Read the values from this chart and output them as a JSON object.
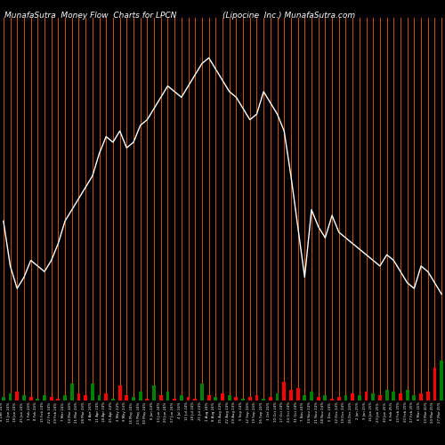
{
  "title_left": "MunafaSutra  Money Flow  Charts for LPCN",
  "title_right": "(Lipocine  Inc.) MunafaSutra.com",
  "background_color": "#000000",
  "orange_line_color": "#CC5500",
  "white_line_color": "#FFFFFF",
  "n_bars": 65,
  "white_line_values": [
    300,
    260,
    240,
    250,
    265,
    260,
    255,
    265,
    280,
    300,
    310,
    320,
    330,
    340,
    360,
    375,
    370,
    380,
    365,
    370,
    385,
    390,
    400,
    410,
    420,
    415,
    410,
    420,
    430,
    440,
    445,
    435,
    425,
    415,
    410,
    400,
    390,
    395,
    415,
    405,
    395,
    380,
    340,
    295,
    250,
    310,
    295,
    285,
    305,
    290,
    285,
    280,
    275,
    270,
    265,
    260,
    270,
    265,
    255,
    245,
    240,
    260,
    255,
    245,
    235
  ],
  "mf_values": [
    2,
    4,
    5,
    3,
    2,
    1,
    3,
    2,
    1,
    3,
    9,
    4,
    3,
    9,
    3,
    4,
    1,
    8,
    3,
    2,
    5,
    1,
    8,
    3,
    5,
    1,
    3,
    2,
    1,
    9,
    3,
    2,
    4,
    3,
    2,
    1,
    2,
    3,
    1,
    2,
    4,
    10,
    6,
    7,
    3,
    5,
    2,
    3,
    1,
    2,
    3,
    4,
    3,
    5,
    4,
    3,
    6,
    5,
    4,
    6,
    3,
    4,
    5,
    18,
    22
  ],
  "mf_colors": [
    "green",
    "green",
    "red",
    "green",
    "red",
    "green",
    "green",
    "red",
    "red",
    "green",
    "green",
    "red",
    "red",
    "green",
    "green",
    "red",
    "green",
    "red",
    "red",
    "green",
    "green",
    "red",
    "green",
    "red",
    "green",
    "red",
    "green",
    "red",
    "red",
    "green",
    "red",
    "green",
    "red",
    "green",
    "red",
    "green",
    "red",
    "red",
    "green",
    "red",
    "green",
    "red",
    "red",
    "red",
    "green",
    "green",
    "red",
    "green",
    "red",
    "red",
    "green",
    "red",
    "green",
    "red",
    "green",
    "red",
    "green",
    "green",
    "red",
    "green",
    "green",
    "red",
    "red",
    "red",
    "green"
  ],
  "x_labels": [
    "4 Dec 24%",
    "11 Jan 24%",
    "18 Jan 24%",
    "25 Jan 24%",
    "1 Feb 24%",
    "8 Feb 24%",
    "15 Feb 24%",
    "22 Feb 24%",
    "29 Feb 24%",
    "7 Mar 24%",
    "14 Mar 24%",
    "21 Mar 24%",
    "28 Mar 24%",
    "4 Apr 24%",
    "11 Apr 24%",
    "18 Apr 24%",
    "25 Apr 24%",
    "2 May 24%",
    "9 May 24%",
    "16 May 24%",
    "23 May 24%",
    "30 May 24%",
    "6 Jun 24%",
    "13 Jun 24%",
    "20 Jun 24%",
    "27 Jun 24%",
    "4 Jul 24%",
    "11 Jul 24%",
    "18 Jul 24%",
    "25 Jul 24%",
    "1 Aug 24%",
    "8 Aug 24%",
    "15 Aug 24%",
    "22 Aug 24%",
    "29 Aug 24%",
    "5 Sep 24%",
    "12 Sep 24%",
    "19 Sep 24%",
    "26 Sep 24%",
    "3 Oct 24%",
    "10 Oct 24%",
    "17 Oct 24%",
    "24 Oct 24%",
    "31 Oct 24%",
    "7 Nov 24%",
    "14 Nov 24%",
    "21 Nov 24%",
    "28 Nov 24%",
    "5 Dec 24%",
    "12 Dec 24%",
    "19 Dec 24%",
    "26 Dec 24%",
    "2 Jan 25%",
    "9 Jan 25%",
    "16 Jan 25%",
    "23 Jan 25%",
    "30 Jan 25%",
    "6 Feb 25%",
    "13 Feb 25%",
    "20 Feb 25%",
    "27 Feb 25%",
    "6 Mar 25%",
    "13 Mar 25%",
    "20 Mar 25%",
    "27 Mar 25%"
  ]
}
